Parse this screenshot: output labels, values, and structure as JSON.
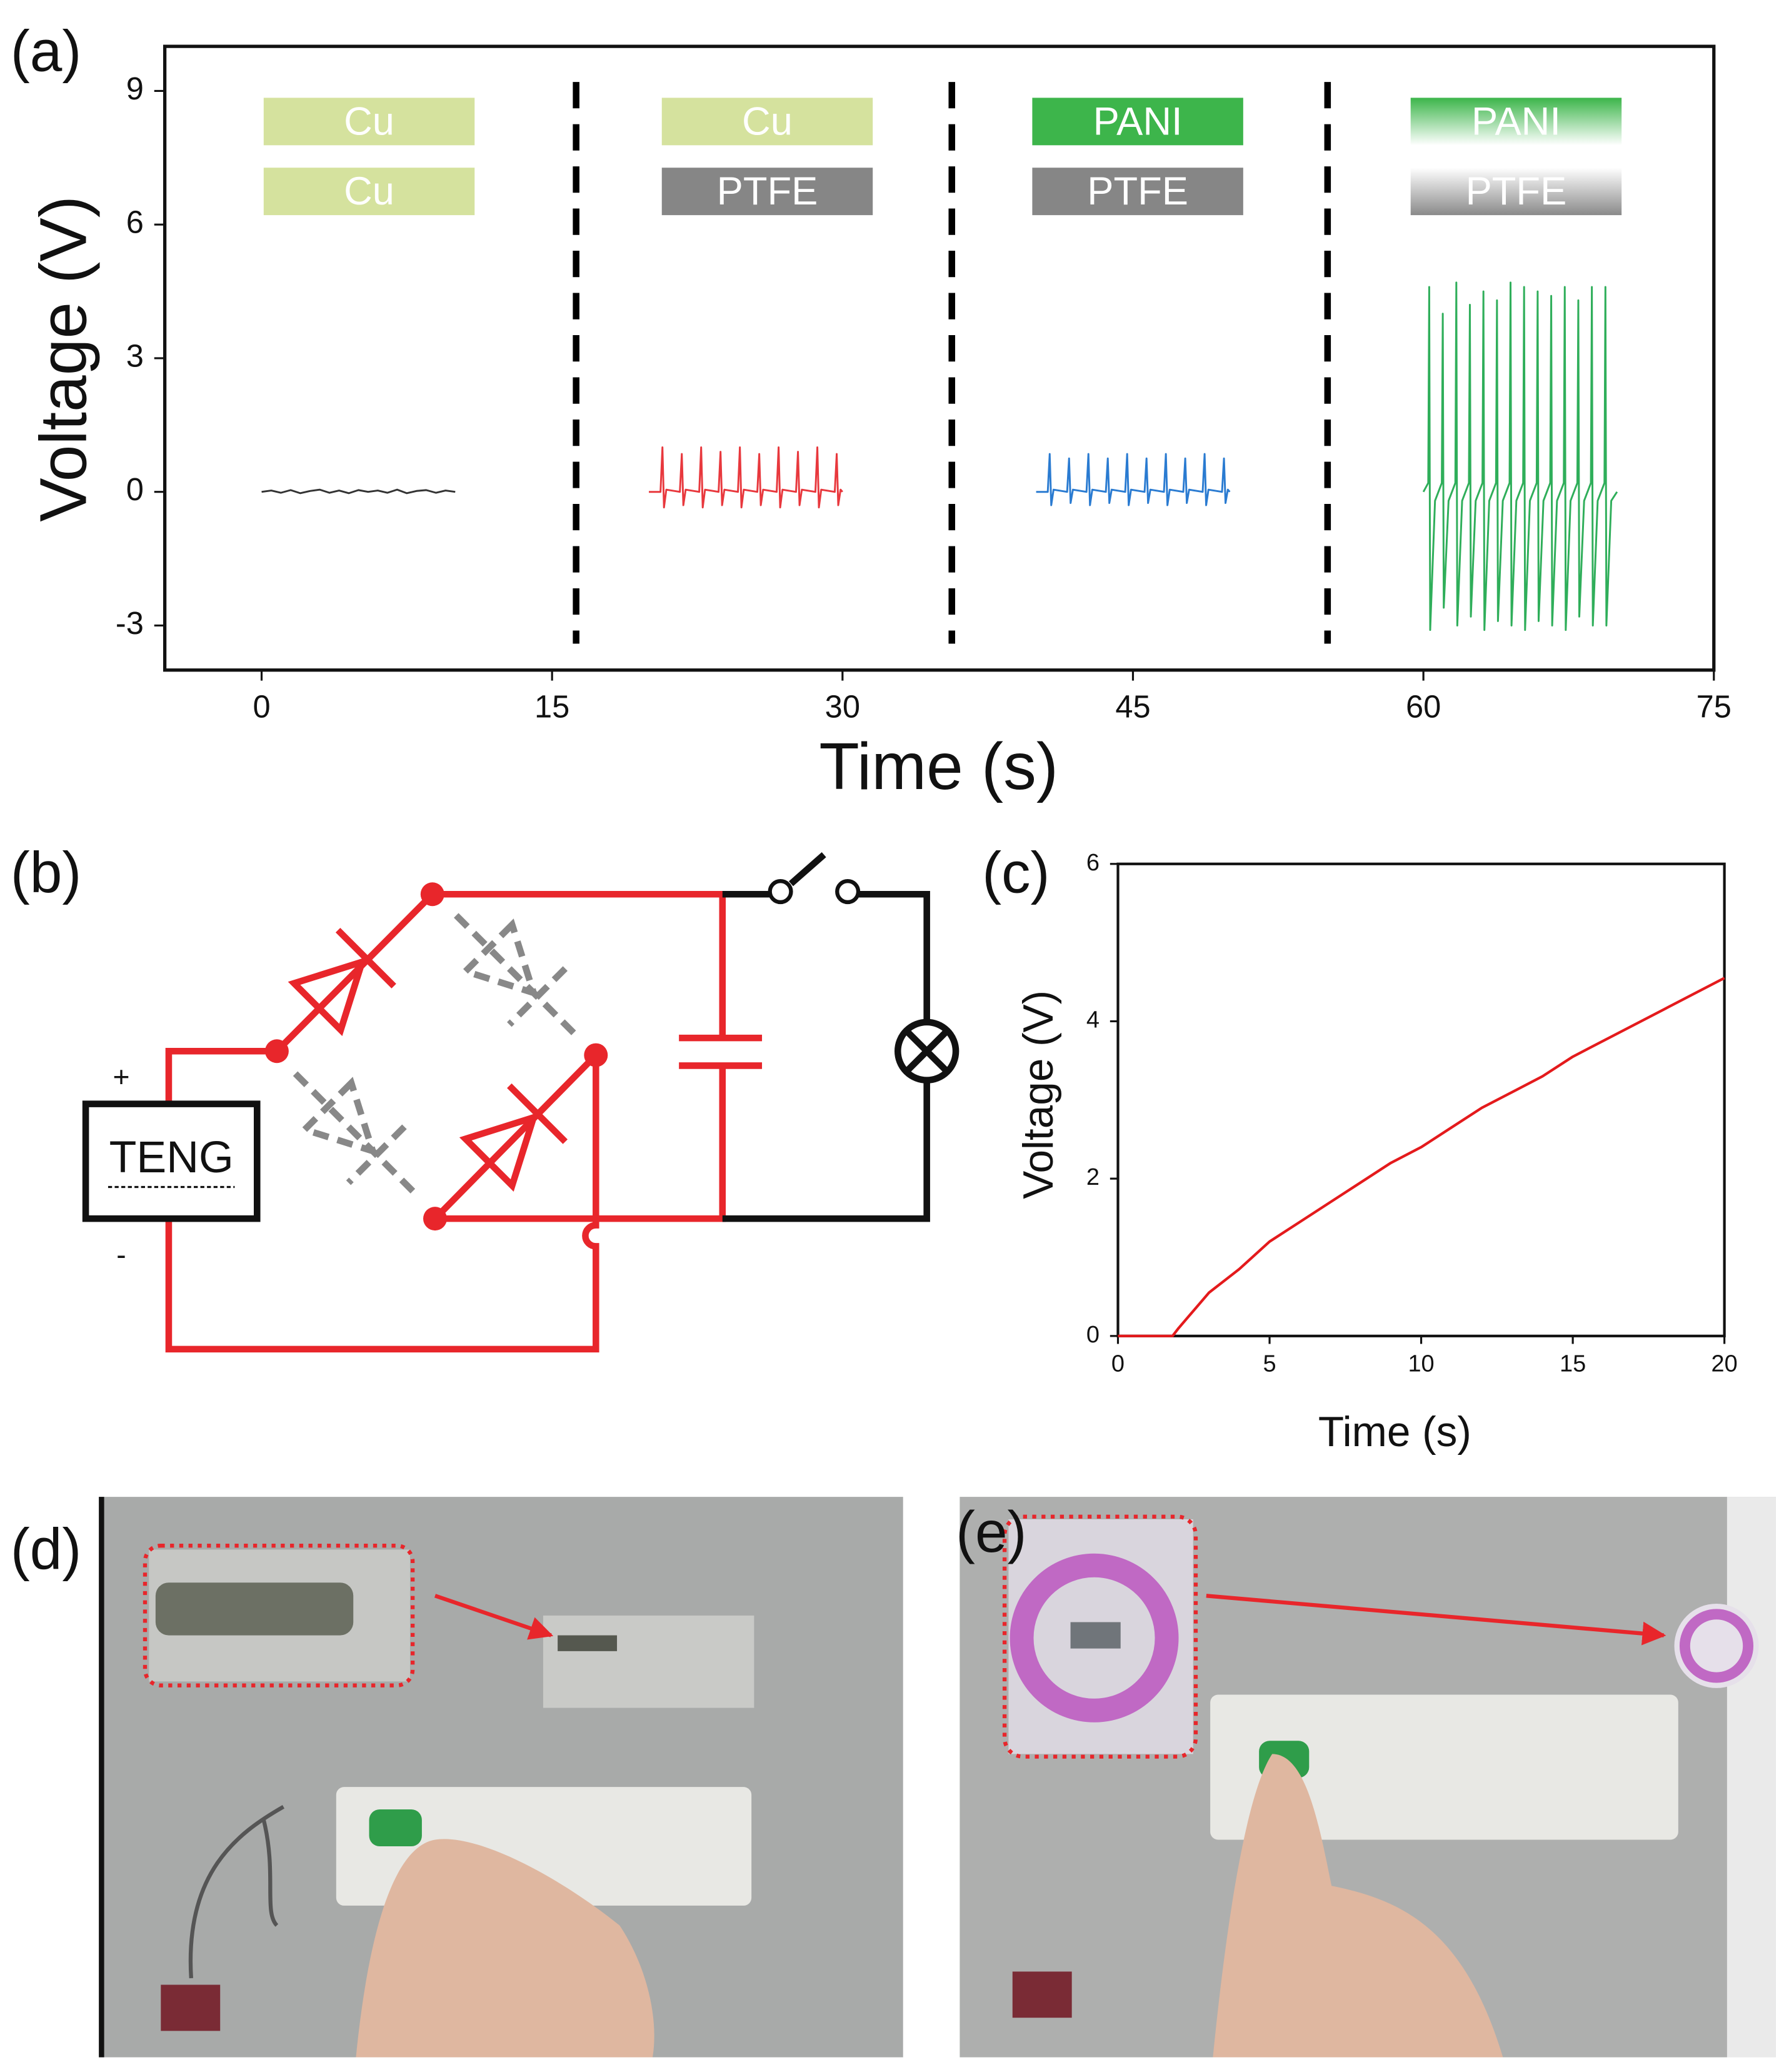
{
  "panel_labels": [
    "(a)",
    "(b)",
    "(c)",
    "(d)",
    "(e)"
  ],
  "chart_data": [
    {
      "type": "line",
      "xlabel": "Time (s)",
      "ylabel": "Voltage (V)",
      "xlim": [
        -5,
        75
      ],
      "ylim": [
        -4,
        10
      ],
      "xticks": [
        0,
        15,
        30,
        45,
        60,
        75
      ],
      "yticks": [
        -3,
        0,
        3,
        6,
        9
      ],
      "material_pairs": [
        [
          "Cu",
          "Cu"
        ],
        [
          "Cu",
          "PTFE"
        ],
        [
          "PANI",
          "PTFE"
        ],
        [
          "PANI",
          "PTFE"
        ]
      ],
      "series": [
        {
          "color": "#333333",
          "x": [
            0,
            0.5,
            1,
            1.5,
            2,
            2.5,
            3,
            3.5,
            4,
            4.5,
            5,
            5.5,
            6,
            6.5,
            7,
            7.5,
            8,
            8.5,
            9,
            9.5,
            10
          ],
          "values": [
            0,
            0.03,
            -0.02,
            0.04,
            -0.03,
            0.02,
            0.05,
            -0.02,
            0.03,
            -0.03,
            0.04,
            0,
            0.03,
            -0.02,
            0.05,
            -0.03,
            0.02,
            0.04,
            -0.02,
            0.03,
            0
          ]
        },
        {
          "color": "#e8383d",
          "x": [
            20,
            20.6,
            20.7,
            20.78,
            20.9,
            21.6,
            21.7,
            21.78,
            21.9,
            22.6,
            22.7,
            22.78,
            22.9,
            23.6,
            23.7,
            23.78,
            23.9,
            24.6,
            24.7,
            24.78,
            24.9,
            25.6,
            25.7,
            25.78,
            25.9,
            26.6,
            26.7,
            26.78,
            26.9,
            27.6,
            27.7,
            27.78,
            27.9,
            28.6,
            28.7,
            28.78,
            28.9,
            29.6,
            29.7,
            29.78,
            29.9,
            30
          ],
          "values": [
            0,
            0,
            1.0,
            -0.35,
            0.05,
            0,
            0.85,
            -0.3,
            0.05,
            0,
            1.0,
            -0.35,
            0.05,
            0,
            0.9,
            -0.3,
            0.05,
            0,
            1.0,
            -0.35,
            0.05,
            0,
            0.85,
            -0.3,
            0.05,
            0,
            1.0,
            -0.35,
            0.05,
            0,
            0.9,
            -0.3,
            0.05,
            0,
            1.0,
            -0.35,
            0.05,
            0,
            0.85,
            -0.3,
            0.05,
            0
          ]
        },
        {
          "color": "#2a7bd1",
          "x": [
            40,
            40.6,
            40.7,
            40.78,
            40.9,
            41.6,
            41.7,
            41.78,
            41.9,
            42.6,
            42.7,
            42.78,
            42.9,
            43.6,
            43.7,
            43.78,
            43.9,
            44.6,
            44.7,
            44.78,
            44.9,
            45.6,
            45.7,
            45.78,
            45.9,
            46.6,
            46.7,
            46.78,
            46.9,
            47.6,
            47.7,
            47.78,
            47.9,
            48.6,
            48.7,
            48.78,
            48.9,
            49.6,
            49.7,
            49.78,
            49.9,
            50
          ],
          "values": [
            0,
            0,
            0.85,
            -0.3,
            0.05,
            0,
            0.75,
            -0.25,
            0.05,
            0,
            0.85,
            -0.3,
            0.05,
            0,
            0.75,
            -0.25,
            0.05,
            0,
            0.85,
            -0.3,
            0.05,
            0,
            0.75,
            -0.25,
            0.05,
            0,
            0.85,
            -0.3,
            0.05,
            0,
            0.75,
            -0.25,
            0.05,
            0,
            0.85,
            -0.3,
            0.05,
            0,
            0.75,
            -0.25,
            0.05,
            0
          ]
        },
        {
          "color": "#2fae5a",
          "x": [
            60,
            60.25,
            60.3,
            60.35,
            60.6,
            60.95,
            61.0,
            61.05,
            61.3,
            61.65,
            61.7,
            61.75,
            62.0,
            62.35,
            62.4,
            62.45,
            62.7,
            63.05,
            63.1,
            63.15,
            63.4,
            63.75,
            63.8,
            63.85,
            64.1,
            64.45,
            64.5,
            64.55,
            64.8,
            65.15,
            65.2,
            65.25,
            65.5,
            65.85,
            65.9,
            65.95,
            66.2,
            66.55,
            66.6,
            66.65,
            66.9,
            67.25,
            67.3,
            67.35,
            67.6,
            67.95,
            68.0,
            68.05,
            68.3,
            68.65,
            68.7,
            68.75,
            69.0,
            69.35,
            69.4,
            69.45,
            69.7,
            70
          ],
          "values": [
            0,
            0.2,
            4.6,
            -3.1,
            -0.2,
            0.2,
            4.0,
            -2.6,
            -0.2,
            0.2,
            4.7,
            -3.0,
            -0.2,
            0.2,
            4.2,
            -2.8,
            -0.2,
            0.2,
            4.5,
            -3.1,
            -0.2,
            0.2,
            4.3,
            -2.9,
            -0.2,
            0.2,
            4.7,
            -3.0,
            -0.2,
            0.2,
            4.6,
            -3.1,
            -0.2,
            0.2,
            4.5,
            -2.9,
            -0.2,
            0.2,
            4.4,
            -3.0,
            -0.2,
            0.2,
            4.6,
            -3.1,
            -0.2,
            0.2,
            4.3,
            -2.8,
            -0.2,
            0.2,
            4.6,
            -3.0,
            -0.2,
            0.2,
            4.6,
            -3.0,
            -0.2,
            0
          ]
        }
      ]
    },
    {
      "type": "line",
      "xlabel": "Time (s)",
      "ylabel": "Voltage (V)",
      "xlim": [
        0,
        20
      ],
      "ylim": [
        0,
        6
      ],
      "xticks": [
        0,
        5,
        10,
        15,
        20
      ],
      "yticks": [
        0,
        2,
        4,
        6
      ],
      "series": [
        {
          "color": "#e41a1c",
          "x": [
            0,
            1.8,
            2,
            3,
            4,
            5,
            6,
            7,
            8,
            9,
            10,
            11,
            12,
            13,
            14,
            15,
            16,
            17,
            18,
            19,
            20
          ],
          "values": [
            0,
            0,
            0.1,
            0.55,
            0.85,
            1.2,
            1.45,
            1.7,
            1.95,
            2.2,
            2.4,
            2.65,
            2.9,
            3.1,
            3.3,
            3.55,
            3.75,
            3.95,
            4.15,
            4.35,
            4.55
          ]
        }
      ]
    }
  ],
  "diagram": {
    "device": "TENG",
    "plus": "+",
    "minus": "-"
  }
}
